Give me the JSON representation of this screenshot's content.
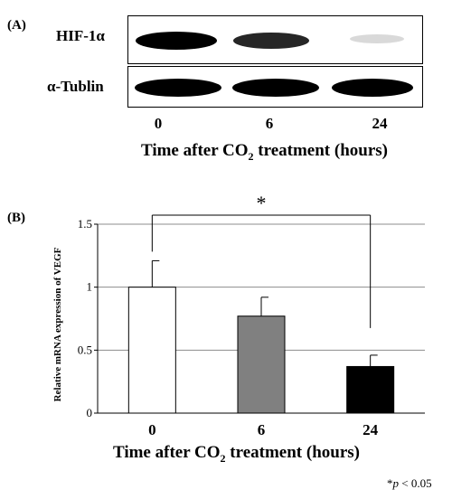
{
  "panel_a": {
    "label": "(A)",
    "rows": [
      {
        "label": "HIF-1α",
        "intensities": [
          1.0,
          0.85,
          0.15
        ]
      },
      {
        "label": "α-Tublin",
        "intensities": [
          1.0,
          1.0,
          1.0
        ]
      }
    ],
    "lanes": [
      "0",
      "6",
      "24"
    ],
    "xlabel_pre": "Time after CO",
    "xlabel_sub": "2",
    "xlabel_post": " treatment (hours)"
  },
  "panel_b": {
    "label": "(B)",
    "significance": "*",
    "footnote_star": "*",
    "footnote_p": "p",
    "footnote_rest": " < 0.05"
  },
  "chart_data": {
    "type": "bar",
    "categories": [
      "0",
      "6",
      "24"
    ],
    "values": [
      1.0,
      0.77,
      0.37
    ],
    "errors": [
      0.21,
      0.15,
      0.09
    ],
    "bar_colors": [
      "#ffffff",
      "#808080",
      "#000000"
    ],
    "ylabel": "Relative mRNA expression of VEGF",
    "xlabel_pre": "Time after CO",
    "xlabel_sub": "2",
    "xlabel_post": " treatment (hours)",
    "ylim": [
      0,
      1.5
    ],
    "yticks": [
      "0",
      "0.5",
      "1",
      "1.5"
    ],
    "grid": true
  }
}
